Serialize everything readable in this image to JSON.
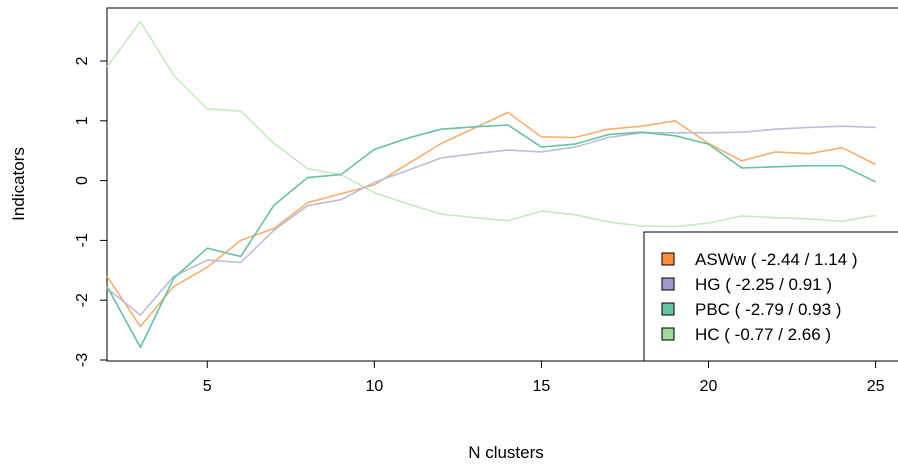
{
  "chart_data": {
    "type": "line",
    "title": "",
    "xlabel": "N clusters",
    "ylabel": "Indicators",
    "x": [
      2,
      3,
      4,
      5,
      6,
      7,
      8,
      9,
      10,
      11,
      12,
      13,
      14,
      15,
      16,
      17,
      18,
      19,
      20,
      21,
      22,
      23,
      24,
      25
    ],
    "xlim": [
      2,
      25
    ],
    "ylim": [
      -3,
      2.8
    ],
    "x_ticks": [
      5,
      10,
      15,
      20,
      25
    ],
    "y_ticks": [
      -3,
      -2,
      -1,
      0,
      1,
      2
    ],
    "x_tick_labels": [
      "5",
      "10",
      "15",
      "20",
      "25"
    ],
    "y_tick_labels": [
      "-3",
      "-2",
      "-1",
      "0",
      "1",
      "2"
    ],
    "grid": false,
    "legend_position": "bottom-right",
    "series": [
      {
        "name": "ASWw ( -2.44 / 1.14 )",
        "color": "#fdae6b",
        "swatch_color": "#fd8d3c",
        "values": [
          -1.6,
          -2.44,
          -1.77,
          -1.45,
          -1.0,
          -0.8,
          -0.37,
          -0.22,
          -0.07,
          0.28,
          0.62,
          0.88,
          1.14,
          0.73,
          0.72,
          0.86,
          0.91,
          1.0,
          0.62,
          0.33,
          0.48,
          0.45,
          0.55,
          0.27
        ]
      },
      {
        "name": "HG ( -2.25 / 0.91 )",
        "color": "#bcbddc",
        "swatch_color": "#9e9ac8",
        "values": [
          -1.8,
          -2.25,
          -1.6,
          -1.33,
          -1.37,
          -0.83,
          -0.42,
          -0.32,
          -0.03,
          0.17,
          0.38,
          0.45,
          0.51,
          0.48,
          0.56,
          0.72,
          0.8,
          0.8,
          0.8,
          0.81,
          0.86,
          0.89,
          0.91,
          0.89
        ]
      },
      {
        "name": "PBC ( -2.79 / 0.93 )",
        "color": "#66c2a4",
        "swatch_color": "#66c2a4",
        "values": [
          -1.77,
          -2.79,
          -1.63,
          -1.13,
          -1.27,
          -0.41,
          0.05,
          0.1,
          0.52,
          0.71,
          0.86,
          0.9,
          0.93,
          0.56,
          0.61,
          0.77,
          0.81,
          0.75,
          0.61,
          0.21,
          0.23,
          0.25,
          0.25,
          -0.02
        ]
      },
      {
        "name": "HC ( -0.77 / 2.66 )",
        "color": "#c7e9c0",
        "swatch_color": "#a1d99b",
        "values": [
          1.9,
          2.66,
          1.76,
          1.2,
          1.16,
          0.62,
          0.2,
          0.1,
          -0.2,
          -0.39,
          -0.56,
          -0.62,
          -0.67,
          -0.51,
          -0.57,
          -0.69,
          -0.76,
          -0.77,
          -0.71,
          -0.59,
          -0.62,
          -0.64,
          -0.68,
          -0.58
        ]
      }
    ]
  }
}
